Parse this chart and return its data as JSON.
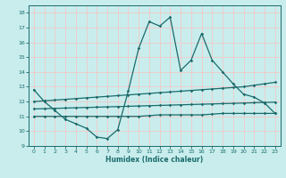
{
  "xlabel": "Humidex (Indice chaleur)",
  "xlim": [
    -0.5,
    23.5
  ],
  "ylim": [
    9,
    18.5
  ],
  "xticks": [
    0,
    1,
    2,
    3,
    4,
    5,
    6,
    7,
    8,
    9,
    10,
    11,
    12,
    13,
    14,
    15,
    16,
    17,
    18,
    19,
    20,
    21,
    22,
    23
  ],
  "yticks": [
    9,
    10,
    11,
    12,
    13,
    14,
    15,
    16,
    17,
    18
  ],
  "bg_color": "#c9eded",
  "grid_color": "#f2c8c8",
  "line_color": "#1a6b6b",
  "line1_x": [
    0,
    1,
    2,
    3,
    4,
    5,
    6,
    7,
    8,
    9,
    10,
    11,
    12,
    13,
    14,
    15,
    16,
    17,
    18,
    19,
    20,
    21,
    22,
    23
  ],
  "line1_y": [
    12.8,
    12.0,
    11.4,
    10.8,
    10.5,
    10.2,
    9.6,
    9.5,
    10.1,
    12.7,
    15.6,
    17.4,
    17.1,
    17.7,
    14.1,
    14.8,
    16.6,
    14.8,
    14.0,
    13.2,
    12.5,
    12.3,
    11.9,
    11.2
  ],
  "line2_x": [
    0,
    1,
    2,
    3,
    4,
    5,
    6,
    7,
    8,
    9,
    10,
    11,
    12,
    13,
    14,
    15,
    16,
    17,
    18,
    19,
    20,
    21,
    22,
    23
  ],
  "line2_y": [
    12.0,
    12.05,
    12.1,
    12.15,
    12.2,
    12.25,
    12.3,
    12.35,
    12.4,
    12.45,
    12.5,
    12.55,
    12.6,
    12.65,
    12.7,
    12.75,
    12.8,
    12.85,
    12.9,
    12.95,
    13.0,
    13.1,
    13.2,
    13.3
  ],
  "line3_x": [
    0,
    1,
    2,
    3,
    4,
    5,
    6,
    7,
    8,
    9,
    10,
    11,
    12,
    13,
    14,
    15,
    16,
    17,
    18,
    19,
    20,
    21,
    22,
    23
  ],
  "line3_y": [
    11.5,
    11.52,
    11.54,
    11.56,
    11.58,
    11.6,
    11.62,
    11.64,
    11.66,
    11.68,
    11.7,
    11.72,
    11.74,
    11.76,
    11.78,
    11.8,
    11.82,
    11.84,
    11.86,
    11.88,
    11.9,
    11.92,
    11.94,
    11.96
  ],
  "line4_x": [
    0,
    1,
    2,
    3,
    4,
    5,
    6,
    7,
    8,
    9,
    10,
    11,
    12,
    13,
    14,
    15,
    16,
    17,
    18,
    19,
    20,
    21,
    22,
    23
  ],
  "line4_y": [
    11.0,
    11.0,
    11.0,
    11.0,
    11.0,
    11.0,
    11.0,
    11.0,
    11.0,
    11.0,
    11.0,
    11.05,
    11.1,
    11.1,
    11.1,
    11.1,
    11.1,
    11.15,
    11.2,
    11.2,
    11.2,
    11.2,
    11.2,
    11.2
  ]
}
